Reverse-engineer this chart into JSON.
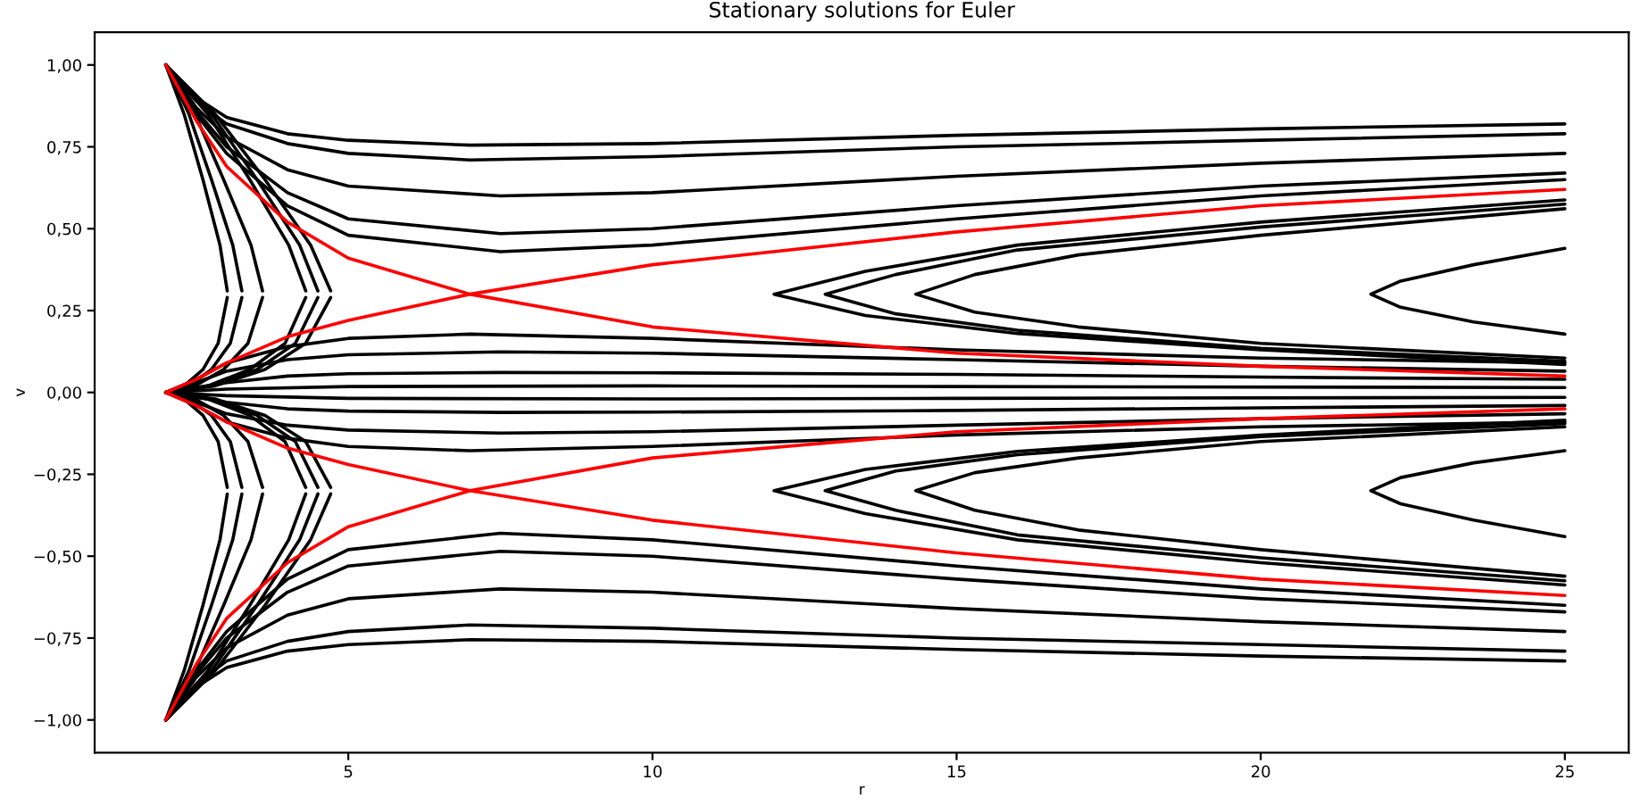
{
  "chart_data": {
    "type": "line",
    "title": "Stationary solutions for Euler",
    "xlabel": "r",
    "ylabel": "v",
    "xlim": [
      0.83,
      26.05
    ],
    "ylim": [
      -1.1,
      1.1
    ],
    "xticks": [
      5,
      10,
      15,
      20,
      25
    ],
    "yticks": [
      {
        "value": -1,
        "label": "−1,00"
      },
      {
        "value": -0.75,
        "label": "−0,75"
      },
      {
        "value": -0.5,
        "label": "−0,50"
      },
      {
        "value": -0.25,
        "label": "−0,25"
      },
      {
        "value": 0,
        "label": "0,00"
      },
      {
        "value": 0.25,
        "label": "0,25"
      },
      {
        "value": 0.5,
        "label": "0,50"
      },
      {
        "value": 0.75,
        "label": "0,75"
      },
      {
        "value": 1,
        "label": "1,00"
      }
    ],
    "grid": false,
    "legend": false,
    "marker": "none",
    "line_style": "solid",
    "series": [
      {
        "color": "#000000",
        "x": [
          2,
          2.5,
          3,
          4,
          5,
          7,
          10,
          15,
          20,
          25
        ],
        "values": [
          1,
          0.9,
          0.84,
          0.79,
          0.77,
          0.755,
          0.76,
          0.785,
          0.805,
          0.82
        ]
      },
      {
        "color": "#000000",
        "x": [
          2,
          2.5,
          3,
          4,
          5,
          7,
          10,
          15,
          20,
          25
        ],
        "values": [
          1,
          0.89,
          0.82,
          0.76,
          0.73,
          0.71,
          0.72,
          0.75,
          0.77,
          0.79
        ]
      },
      {
        "color": "#000000",
        "x": [
          2,
          2.5,
          3,
          4,
          5,
          7.5,
          10,
          15,
          20,
          25
        ],
        "values": [
          1,
          0.87,
          0.78,
          0.68,
          0.63,
          0.6,
          0.61,
          0.66,
          0.7,
          0.73
        ]
      },
      {
        "color": "#000000",
        "x": [
          2,
          2.5,
          3,
          4,
          5,
          7.5,
          10,
          15,
          20,
          25
        ],
        "values": [
          1,
          0.86,
          0.75,
          0.61,
          0.53,
          0.485,
          0.5,
          0.57,
          0.63,
          0.67
        ]
      },
      {
        "color": "#000000",
        "x": [
          2,
          2.5,
          3,
          4,
          5,
          7.5,
          10,
          15,
          20,
          25
        ],
        "values": [
          1,
          0.85,
          0.73,
          0.57,
          0.48,
          0.43,
          0.45,
          0.53,
          0.6,
          0.65
        ]
      },
      {
        "color": "#000000",
        "x": [
          2,
          2.3,
          2.61,
          2.89,
          3.01
        ],
        "values": [
          1,
          0.85,
          0.65,
          0.45,
          0.31
        ]
      },
      {
        "color": "#000000",
        "x": [
          3.01,
          2.86,
          2.61,
          2.3,
          2
        ],
        "values": [
          0.29,
          0.15,
          0.07,
          0.02,
          0
        ]
      },
      {
        "color": "#000000",
        "x": [
          2,
          2.38,
          2.75,
          3.1,
          3.25
        ],
        "values": [
          1,
          0.85,
          0.65,
          0.45,
          0.31
        ]
      },
      {
        "color": "#000000",
        "x": [
          3.25,
          3.06,
          2.75,
          2.38,
          2
        ],
        "values": [
          0.29,
          0.15,
          0.07,
          0.02,
          0
        ]
      },
      {
        "color": "#000000",
        "x": [
          2,
          2.48,
          2.95,
          3.4,
          3.59
        ],
        "values": [
          1,
          0.85,
          0.65,
          0.45,
          0.31
        ]
      },
      {
        "color": "#000000",
        "x": [
          3.59,
          3.35,
          2.95,
          2.48,
          2
        ],
        "values": [
          0.29,
          0.15,
          0.07,
          0.02,
          0
        ]
      },
      {
        "color": "#000000",
        "x": [
          2,
          2.69,
          3.38,
          4.02,
          4.3
        ],
        "values": [
          1,
          0.85,
          0.65,
          0.45,
          0.31
        ]
      },
      {
        "color": "#000000",
        "x": [
          4.3,
          3.96,
          3.38,
          2.69,
          2
        ],
        "values": [
          0.29,
          0.15,
          0.07,
          0.02,
          0
        ]
      },
      {
        "color": "#000000",
        "x": [
          2,
          2.75,
          3.5,
          4.2,
          4.5
        ],
        "values": [
          1,
          0.85,
          0.65,
          0.45,
          0.31
        ]
      },
      {
        "color": "#000000",
        "x": [
          4.5,
          4.13,
          3.5,
          2.75,
          2
        ],
        "values": [
          0.29,
          0.15,
          0.07,
          0.02,
          0
        ]
      },
      {
        "color": "#000000",
        "x": [
          2,
          2.81,
          3.63,
          4.38,
          4.71
        ],
        "values": [
          1,
          0.85,
          0.65,
          0.45,
          0.31
        ]
      },
      {
        "color": "#000000",
        "x": [
          4.71,
          4.3,
          3.63,
          2.81,
          2
        ],
        "values": [
          0.29,
          0.15,
          0.07,
          0.02,
          0
        ]
      },
      {
        "color": "#000000",
        "x": [
          2,
          2.5,
          3,
          4,
          5,
          7,
          10,
          15,
          20,
          25
        ],
        "values": [
          0,
          0.04,
          0.09,
          0.14,
          0.165,
          0.178,
          0.165,
          0.13,
          0.105,
          0.09
        ]
      },
      {
        "color": "#000000",
        "x": [
          2,
          2.5,
          3,
          4,
          5,
          7.5,
          10,
          15,
          20,
          25
        ],
        "values": [
          0,
          0.03,
          0.065,
          0.1,
          0.115,
          0.124,
          0.12,
          0.1,
          0.08,
          0.065
        ]
      },
      {
        "color": "#000000",
        "x": [
          2,
          3,
          4,
          5,
          7.5,
          10,
          15,
          20,
          25
        ],
        "values": [
          0,
          0.03,
          0.05,
          0.057,
          0.061,
          0.06,
          0.055,
          0.047,
          0.04
        ]
      },
      {
        "color": "#000000",
        "x": [
          2,
          3,
          5,
          10,
          15,
          25
        ],
        "values": [
          0,
          0.01,
          0.018,
          0.02,
          0.018,
          0.015
        ]
      },
      {
        "color": "#000000",
        "x": [
          25,
          20,
          16,
          13.5,
          12,
          13.5,
          16,
          20,
          25
        ],
        "values": [
          0.588,
          0.52,
          0.45,
          0.37,
          0.3,
          0.235,
          0.18,
          0.13,
          0.085
        ]
      },
      {
        "color": "#000000",
        "x": [
          25,
          20,
          16,
          14,
          12.84,
          14,
          16,
          20,
          25
        ],
        "values": [
          0.575,
          0.505,
          0.435,
          0.36,
          0.3,
          0.24,
          0.19,
          0.135,
          0.095
        ]
      },
      {
        "color": "#000000",
        "x": [
          25,
          20,
          17,
          15.3,
          14.33,
          15.3,
          17,
          20,
          25
        ],
        "values": [
          0.561,
          0.48,
          0.42,
          0.36,
          0.3,
          0.245,
          0.2,
          0.15,
          0.105
        ]
      },
      {
        "color": "#000000",
        "x": [
          25,
          23.5,
          22.3,
          21.81,
          22.3,
          23.5,
          25
        ],
        "values": [
          0.44,
          0.39,
          0.34,
          0.3,
          0.26,
          0.215,
          0.178
        ]
      },
      {
        "color": "#000000",
        "x": [
          2,
          2.5,
          3,
          4,
          5,
          7,
          10,
          15,
          20,
          25
        ],
        "values": [
          -1,
          -0.9,
          -0.84,
          -0.79,
          -0.77,
          -0.755,
          -0.76,
          -0.785,
          -0.805,
          -0.82
        ]
      },
      {
        "color": "#000000",
        "x": [
          2,
          2.5,
          3,
          4,
          5,
          7,
          10,
          15,
          20,
          25
        ],
        "values": [
          -1,
          -0.89,
          -0.82,
          -0.76,
          -0.73,
          -0.71,
          -0.72,
          -0.75,
          -0.77,
          -0.79
        ]
      },
      {
        "color": "#000000",
        "x": [
          2,
          2.5,
          3,
          4,
          5,
          7.5,
          10,
          15,
          20,
          25
        ],
        "values": [
          -1,
          -0.87,
          -0.78,
          -0.68,
          -0.63,
          -0.6,
          -0.61,
          -0.66,
          -0.7,
          -0.73
        ]
      },
      {
        "color": "#000000",
        "x": [
          2,
          2.5,
          3,
          4,
          5,
          7.5,
          10,
          15,
          20,
          25
        ],
        "values": [
          -1,
          -0.86,
          -0.75,
          -0.61,
          -0.53,
          -0.485,
          -0.5,
          -0.57,
          -0.63,
          -0.67
        ]
      },
      {
        "color": "#000000",
        "x": [
          2,
          2.5,
          3,
          4,
          5,
          7.5,
          10,
          15,
          20,
          25
        ],
        "values": [
          -1,
          -0.85,
          -0.73,
          -0.57,
          -0.48,
          -0.43,
          -0.45,
          -0.53,
          -0.6,
          -0.65
        ]
      },
      {
        "color": "#000000",
        "x": [
          2,
          2.3,
          2.61,
          2.89,
          3.01
        ],
        "values": [
          -1,
          -0.85,
          -0.65,
          -0.45,
          -0.31
        ]
      },
      {
        "color": "#000000",
        "x": [
          3.01,
          2.86,
          2.61,
          2.3,
          2
        ],
        "values": [
          -0.29,
          -0.15,
          -0.07,
          -0.02,
          0
        ]
      },
      {
        "color": "#000000",
        "x": [
          2,
          2.38,
          2.75,
          3.1,
          3.25
        ],
        "values": [
          -1,
          -0.85,
          -0.65,
          -0.45,
          -0.31
        ]
      },
      {
        "color": "#000000",
        "x": [
          3.25,
          3.06,
          2.75,
          2.38,
          2
        ],
        "values": [
          -0.29,
          -0.15,
          -0.07,
          -0.02,
          0
        ]
      },
      {
        "color": "#000000",
        "x": [
          2,
          2.48,
          2.95,
          3.4,
          3.59
        ],
        "values": [
          -1,
          -0.85,
          -0.65,
          -0.45,
          -0.31
        ]
      },
      {
        "color": "#000000",
        "x": [
          3.59,
          3.35,
          2.95,
          2.48,
          2
        ],
        "values": [
          -0.29,
          -0.15,
          -0.07,
          -0.02,
          0
        ]
      },
      {
        "color": "#000000",
        "x": [
          2,
          2.69,
          3.38,
          4.02,
          4.3
        ],
        "values": [
          -1,
          -0.85,
          -0.65,
          -0.45,
          -0.31
        ]
      },
      {
        "color": "#000000",
        "x": [
          4.3,
          3.96,
          3.38,
          2.69,
          2
        ],
        "values": [
          -0.29,
          -0.15,
          -0.07,
          -0.02,
          0
        ]
      },
      {
        "color": "#000000",
        "x": [
          2,
          2.75,
          3.5,
          4.2,
          4.5
        ],
        "values": [
          -1,
          -0.85,
          -0.65,
          -0.45,
          -0.31
        ]
      },
      {
        "color": "#000000",
        "x": [
          4.5,
          4.13,
          3.5,
          2.75,
          2
        ],
        "values": [
          -0.29,
          -0.15,
          -0.07,
          -0.02,
          0
        ]
      },
      {
        "color": "#000000",
        "x": [
          2,
          2.81,
          3.63,
          4.38,
          4.71
        ],
        "values": [
          -1,
          -0.85,
          -0.65,
          -0.45,
          -0.31
        ]
      },
      {
        "color": "#000000",
        "x": [
          4.71,
          4.3,
          3.63,
          2.81,
          2
        ],
        "values": [
          -0.29,
          -0.15,
          -0.07,
          -0.02,
          0
        ]
      },
      {
        "color": "#000000",
        "x": [
          2,
          2.5,
          3,
          4,
          5,
          7,
          10,
          15,
          20,
          25
        ],
        "values": [
          0,
          -0.04,
          -0.09,
          -0.14,
          -0.165,
          -0.178,
          -0.165,
          -0.13,
          -0.105,
          -0.09
        ]
      },
      {
        "color": "#000000",
        "x": [
          2,
          2.5,
          3,
          4,
          5,
          7.5,
          10,
          15,
          20,
          25
        ],
        "values": [
          0,
          -0.03,
          -0.065,
          -0.1,
          -0.115,
          -0.124,
          -0.12,
          -0.1,
          -0.08,
          -0.065
        ]
      },
      {
        "color": "#000000",
        "x": [
          2,
          3,
          4,
          5,
          7.5,
          10,
          15,
          20,
          25
        ],
        "values": [
          0,
          -0.03,
          -0.05,
          -0.057,
          -0.061,
          -0.06,
          -0.055,
          -0.047,
          -0.04
        ]
      },
      {
        "color": "#000000",
        "x": [
          2,
          3,
          5,
          10,
          15,
          25
        ],
        "values": [
          0,
          -0.01,
          -0.018,
          -0.02,
          -0.018,
          -0.015
        ]
      },
      {
        "color": "#000000",
        "x": [
          25,
          20,
          16,
          13.5,
          12,
          13.5,
          16,
          20,
          25
        ],
        "values": [
          -0.588,
          -0.52,
          -0.45,
          -0.37,
          -0.3,
          -0.235,
          -0.18,
          -0.13,
          -0.085
        ]
      },
      {
        "color": "#000000",
        "x": [
          25,
          20,
          16,
          14,
          12.84,
          14,
          16,
          20,
          25
        ],
        "values": [
          -0.575,
          -0.505,
          -0.435,
          -0.36,
          -0.3,
          -0.24,
          -0.19,
          -0.135,
          -0.095
        ]
      },
      {
        "color": "#000000",
        "x": [
          25,
          20,
          17,
          15.3,
          14.33,
          15.3,
          17,
          20,
          25
        ],
        "values": [
          -0.561,
          -0.48,
          -0.42,
          -0.36,
          -0.3,
          -0.245,
          -0.2,
          -0.15,
          -0.105
        ]
      },
      {
        "color": "#000000",
        "x": [
          25,
          23.5,
          22.3,
          21.81,
          22.3,
          23.5,
          25
        ],
        "values": [
          -0.44,
          -0.39,
          -0.34,
          -0.3,
          -0.26,
          -0.215,
          -0.178
        ]
      },
      {
        "color": "#ff0000",
        "x": [
          2,
          2.5,
          3,
          4,
          5,
          7,
          10,
          15,
          20,
          25
        ],
        "values": [
          1,
          0.83,
          0.69,
          0.52,
          0.41,
          0.3,
          0.2,
          0.12,
          0.08,
          0.05
        ]
      },
      {
        "color": "#ff0000",
        "x": [
          2,
          2.5,
          3,
          4,
          5,
          7,
          10,
          15,
          20,
          25
        ],
        "values": [
          0,
          0.04,
          0.09,
          0.17,
          0.22,
          0.3,
          0.39,
          0.49,
          0.57,
          0.62
        ]
      },
      {
        "color": "#ff0000",
        "x": [
          2,
          2.5,
          3,
          4,
          5,
          7,
          10,
          15,
          20,
          25
        ],
        "values": [
          -1,
          -0.83,
          -0.69,
          -0.52,
          -0.41,
          -0.3,
          -0.2,
          -0.12,
          -0.08,
          -0.05
        ]
      },
      {
        "color": "#ff0000",
        "x": [
          2,
          2.5,
          3,
          4,
          5,
          7,
          10,
          15,
          20,
          25
        ],
        "values": [
          0,
          -0.04,
          -0.09,
          -0.17,
          -0.22,
          -0.3,
          -0.39,
          -0.49,
          -0.57,
          -0.62
        ]
      }
    ]
  }
}
